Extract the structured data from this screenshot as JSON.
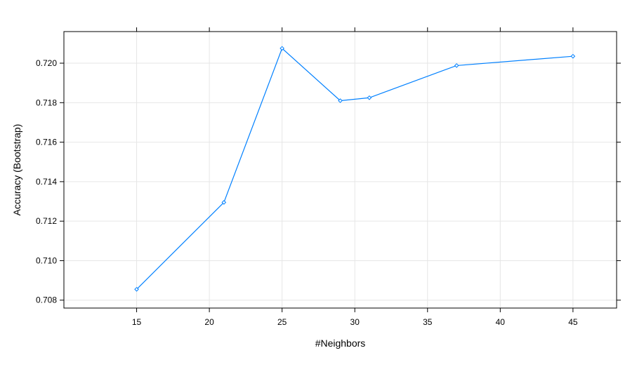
{
  "chart_data": {
    "type": "line",
    "title": "",
    "xlabel": "#Neighbors",
    "ylabel": "Accuracy (Bootstrap)",
    "x": [
      15,
      21,
      25,
      29,
      31,
      37,
      45
    ],
    "series": [
      {
        "name": "",
        "values": [
          0.70855,
          0.71295,
          0.72075,
          0.7181,
          0.71825,
          0.71988,
          0.72035
        ]
      }
    ],
    "xlim": [
      10,
      48
    ],
    "ylim": [
      0.7076,
      0.7216
    ],
    "xticks": [
      15,
      20,
      25,
      30,
      35,
      40,
      45
    ],
    "xtick_labels": [
      "15",
      "20",
      "25",
      "30",
      "35",
      "40",
      "45"
    ],
    "yticks": [
      0.708,
      0.71,
      0.712,
      0.714,
      0.716,
      0.718,
      0.72
    ],
    "ytick_labels": [
      "0.708",
      "0.710",
      "0.712",
      "0.714",
      "0.716",
      "0.718",
      "0.720"
    ],
    "grid": true,
    "legend": "none",
    "colors": {
      "line": "#0080ff",
      "grid": "#e6e6e6",
      "axis": "#000000"
    }
  }
}
